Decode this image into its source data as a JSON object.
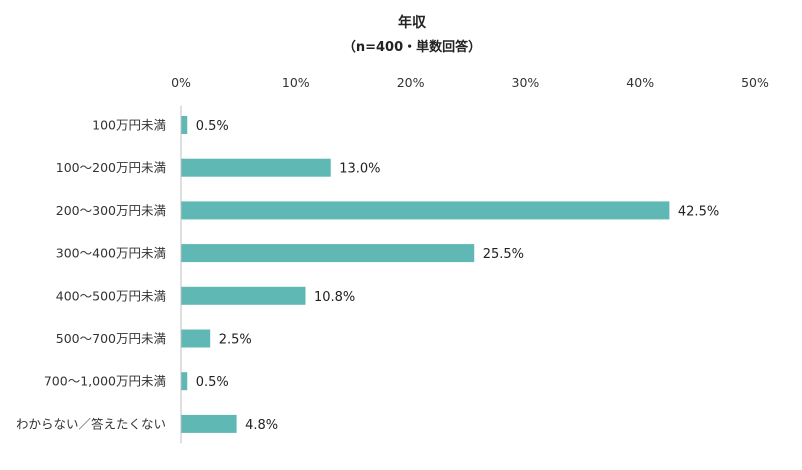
{
  "chart_data": {
    "type": "bar",
    "orientation": "horizontal",
    "title": "年収",
    "subtitle": "（n=400・単数回答）",
    "categories": [
      "100万円未満",
      "100～200万円未満",
      "200～300万円未満",
      "300～400万円未満",
      "400～500万円未満",
      "500～700万円未満",
      "700～1,000万円未満",
      "わからない／答えたくない"
    ],
    "values": [
      0.5,
      13.0,
      42.5,
      25.5,
      10.8,
      2.5,
      0.5,
      4.8
    ],
    "value_labels": [
      "0.5%",
      "13.0%",
      "42.5%",
      "25.5%",
      "10.8%",
      "2.5%",
      "0.5%",
      "4.8%"
    ],
    "xlim": [
      0,
      50
    ],
    "x_ticks": [
      "0%",
      "10%",
      "20%",
      "30%",
      "40%",
      "50%"
    ],
    "x_tick_values": [
      0,
      10,
      20,
      30,
      40,
      50
    ],
    "x_axis_position": "top",
    "grid": false,
    "legend": "none",
    "bar_color": "#5fb8b3"
  }
}
